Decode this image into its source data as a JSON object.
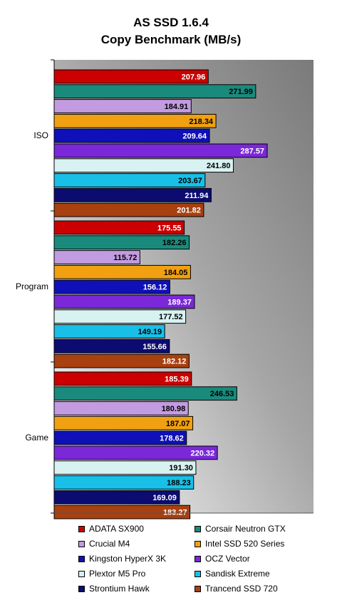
{
  "chart_data": {
    "type": "bar",
    "orientation": "horizontal",
    "title_line1": "AS SSD 1.6.4",
    "title_line2": "Copy Benchmark (MB/s)",
    "categories": [
      "ISO",
      "Program",
      "Game"
    ],
    "xlim": [
      0,
      350
    ],
    "grid": false,
    "legend_placement": "bottom",
    "series": [
      {
        "name": "ADATA SX900",
        "color": "#cc0000",
        "values": [
          207.96,
          175.55,
          185.39
        ],
        "value_labels": [
          "207.96",
          "175.55",
          "185.39"
        ]
      },
      {
        "name": "Corsair Neutron GTX",
        "color": "#1a8a7c",
        "values": [
          271.99,
          182.26,
          246.53
        ],
        "value_labels": [
          "271.99",
          "182.26",
          "246.53"
        ]
      },
      {
        "name": "Crucial M4",
        "color": "#c39be0",
        "values": [
          184.91,
          115.72,
          180.98
        ],
        "value_labels": [
          "184.91",
          "115.72",
          "180.98"
        ]
      },
      {
        "name": "Intel SSD 520 Series",
        "color": "#f0a010",
        "values": [
          218.34,
          184.05,
          187.07
        ],
        "value_labels": [
          "218.34",
          "184.05",
          "187.07"
        ]
      },
      {
        "name": "Kingston HyperX 3K",
        "color": "#1010b8",
        "values": [
          209.64,
          156.12,
          178.62
        ],
        "value_labels": [
          "209.64",
          "156.12",
          "178.62"
        ]
      },
      {
        "name": "OCZ Vector",
        "color": "#7a28d8",
        "values": [
          287.57,
          189.37,
          220.32
        ],
        "value_labels": [
          "287.57",
          "189.37",
          "220.32"
        ]
      },
      {
        "name": "Plextor M5 Pro",
        "color": "#d8f2f2",
        "values": [
          241.8,
          177.52,
          191.3
        ],
        "value_labels": [
          "241.80",
          "177.52",
          "191.30"
        ]
      },
      {
        "name": "Sandisk Extreme",
        "color": "#18c0e8",
        "values": [
          203.67,
          149.19,
          188.23
        ],
        "value_labels": [
          "203.67",
          "149.19",
          "188.23"
        ]
      },
      {
        "name": "Strontium Hawk",
        "color": "#0c0c70",
        "values": [
          211.94,
          155.66,
          169.09
        ],
        "value_labels": [
          "211.94",
          "155.66",
          "169.09"
        ]
      },
      {
        "name": "Trancend SSD 720",
        "color": "#a84010",
        "values": [
          201.82,
          182.12,
          183.27
        ],
        "value_labels": [
          "201.82",
          "182.12",
          "183.27"
        ]
      }
    ]
  }
}
